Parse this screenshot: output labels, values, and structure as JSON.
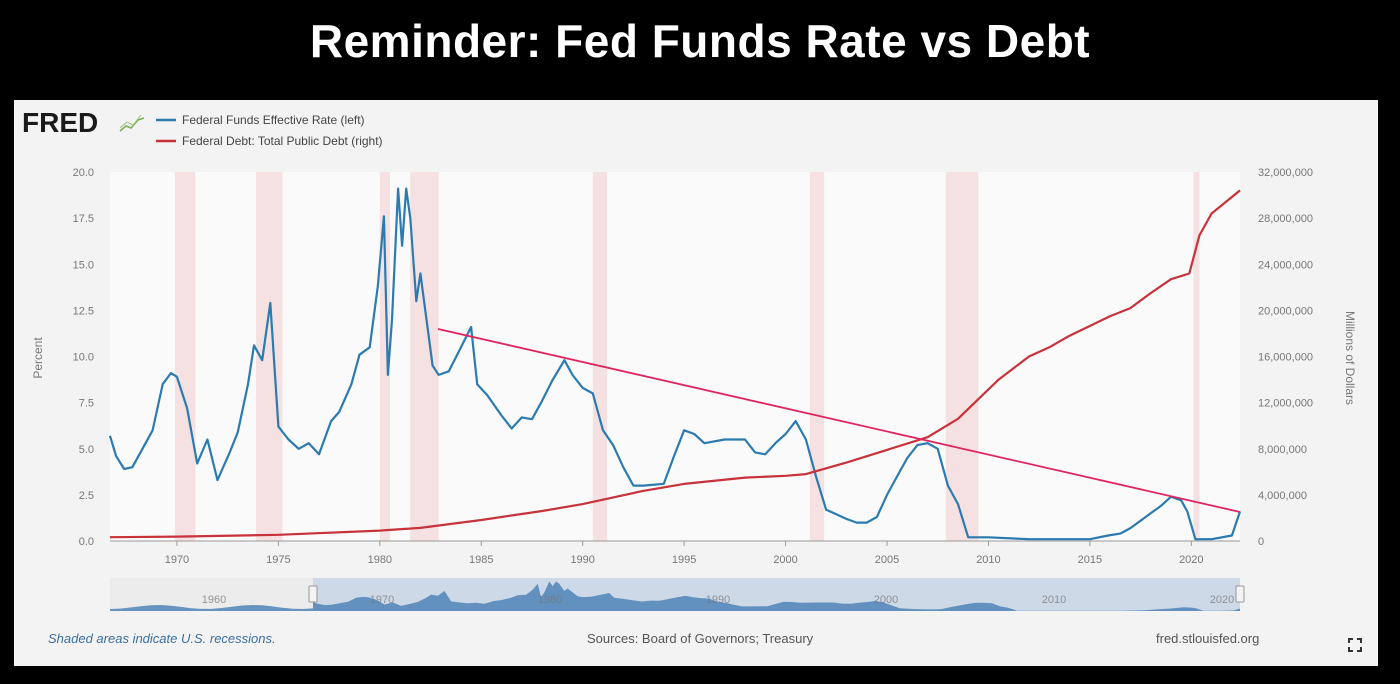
{
  "slide": {
    "title": "Reminder: Fed Funds Rate vs Debt"
  },
  "brand": {
    "logo": "FRED",
    "logo_icon": "fred-sparkline-icon"
  },
  "colors": {
    "rate": "#2b7bb0",
    "debt": "#c7323b",
    "trend": "#e0245e",
    "recession": "#f4dede",
    "plot_bg": "#fafafa"
  },
  "footer": {
    "recessions_note": "Shaded areas indicate U.S. recessions.",
    "sources": "Sources: Board of Governors; Treasury",
    "url": "fred.stlouisfed.org"
  },
  "navigator": {
    "ticks": [
      "1960",
      "1970",
      "1980",
      "1990",
      "2000",
      "2010",
      "2020"
    ]
  },
  "chart_data": {
    "type": "line",
    "title": "",
    "legend_position": "top-left",
    "grid": false,
    "xlim": [
      1966.7,
      2022.4
    ],
    "x_ticks": [
      "1970",
      "1975",
      "1980",
      "1985",
      "1990",
      "1995",
      "2000",
      "2005",
      "2010",
      "2015",
      "2020"
    ],
    "y_left": {
      "label": "Percent",
      "ylim": [
        0,
        20
      ],
      "ticks": [
        "0.0",
        "2.5",
        "5.0",
        "7.5",
        "10.0",
        "12.5",
        "15.0",
        "17.5",
        "20.0"
      ]
    },
    "y_right": {
      "label": "Millions of Dollars",
      "ylim": [
        0,
        32000000
      ],
      "ticks": [
        "0",
        "4,000,000",
        "8,000,000",
        "12,000,000",
        "16,000,000",
        "20,000,000",
        "24,000,000",
        "28,000,000",
        "32,000,000"
      ]
    },
    "recessions": [
      [
        1969.9,
        1970.9
      ],
      [
        1973.9,
        1975.2
      ],
      [
        1980.0,
        1980.5
      ],
      [
        1981.5,
        1982.9
      ],
      [
        1990.5,
        1991.2
      ],
      [
        2001.2,
        2001.9
      ],
      [
        2007.9,
        2009.5
      ],
      [
        2020.1,
        2020.4
      ]
    ],
    "series": [
      {
        "name": "Federal Funds Effective Rate (left)",
        "axis": "left",
        "x": [
          1966.7,
          1967.0,
          1967.4,
          1967.8,
          1968.3,
          1968.8,
          1969.3,
          1969.7,
          1970.0,
          1970.5,
          1971.0,
          1971.5,
          1972.0,
          1972.6,
          1973.0,
          1973.5,
          1973.8,
          1974.2,
          1974.6,
          1975.0,
          1975.5,
          1976.0,
          1976.5,
          1977.0,
          1977.6,
          1978.0,
          1978.6,
          1979.0,
          1979.5,
          1979.9,
          1980.2,
          1980.4,
          1980.6,
          1980.9,
          1981.1,
          1981.3,
          1981.5,
          1981.8,
          1982.0,
          1982.3,
          1982.6,
          1982.9,
          1983.4,
          1984.0,
          1984.5,
          1984.8,
          1985.3,
          1986.0,
          1986.5,
          1987.0,
          1987.5,
          1988.0,
          1988.5,
          1989.1,
          1989.5,
          1990.0,
          1990.5,
          1991.0,
          1991.5,
          1992.0,
          1992.5,
          1993.0,
          1994.0,
          1994.5,
          1995.0,
          1995.5,
          1996.0,
          1997.0,
          1998.0,
          1998.5,
          1999.0,
          1999.5,
          2000.0,
          2000.5,
          2001.0,
          2001.5,
          2002.0,
          2003.0,
          2003.5,
          2004.0,
          2004.5,
          2005.0,
          2005.5,
          2006.0,
          2006.5,
          2007.0,
          2007.5,
          2008.0,
          2008.5,
          2009.0,
          2010.0,
          2012.0,
          2015.0,
          2015.9,
          2016.5,
          2017.0,
          2017.5,
          2018.0,
          2018.5,
          2019.0,
          2019.5,
          2019.8,
          2020.2,
          2021.0,
          2022.0,
          2022.4
        ],
        "values": [
          5.7,
          4.6,
          3.9,
          4.0,
          5.0,
          6.0,
          8.5,
          9.1,
          8.9,
          7.2,
          4.2,
          5.5,
          3.3,
          4.8,
          5.9,
          8.5,
          10.6,
          9.8,
          12.9,
          6.2,
          5.5,
          5.0,
          5.3,
          4.7,
          6.5,
          7.0,
          8.5,
          10.1,
          10.5,
          13.8,
          17.6,
          9.0,
          12.0,
          19.1,
          16.0,
          19.1,
          17.5,
          13.0,
          14.5,
          12.0,
          9.5,
          9.0,
          9.2,
          10.5,
          11.6,
          8.5,
          7.9,
          6.8,
          6.1,
          6.7,
          6.6,
          7.6,
          8.7,
          9.8,
          9.0,
          8.3,
          8.0,
          6.0,
          5.2,
          4.0,
          3.0,
          3.0,
          3.1,
          4.6,
          6.0,
          5.8,
          5.3,
          5.5,
          5.5,
          4.8,
          4.7,
          5.3,
          5.8,
          6.5,
          5.5,
          3.5,
          1.7,
          1.2,
          1.0,
          1.0,
          1.3,
          2.5,
          3.5,
          4.5,
          5.2,
          5.3,
          5.0,
          3.0,
          2.0,
          0.2,
          0.2,
          0.1,
          0.1,
          0.3,
          0.4,
          0.7,
          1.1,
          1.5,
          1.9,
          2.4,
          2.2,
          1.6,
          0.1,
          0.1,
          0.3,
          1.6
        ]
      },
      {
        "name": "Federal Debt: Total Public Debt (right)",
        "axis": "right",
        "x": [
          1966.7,
          1970,
          1975,
          1980,
          1982,
          1985,
          1988,
          1990,
          1993,
          1995,
          1998,
          2000,
          2001,
          2003,
          2005,
          2007,
          2008.5,
          2009.5,
          2010.5,
          2012,
          2013,
          2014,
          2016,
          2017,
          2018,
          2019,
          2019.9,
          2020.4,
          2021,
          2022.4
        ],
        "values": [
          330000,
          380000,
          540000,
          900000,
          1140000,
          1820000,
          2600000,
          3200000,
          4350000,
          4950000,
          5500000,
          5650000,
          5800000,
          6800000,
          7900000,
          9000000,
          10600000,
          12300000,
          14000000,
          16000000,
          16800000,
          17800000,
          19500000,
          20200000,
          21500000,
          22700000,
          23200000,
          26500000,
          28400000,
          30400000
        ]
      }
    ]
  }
}
